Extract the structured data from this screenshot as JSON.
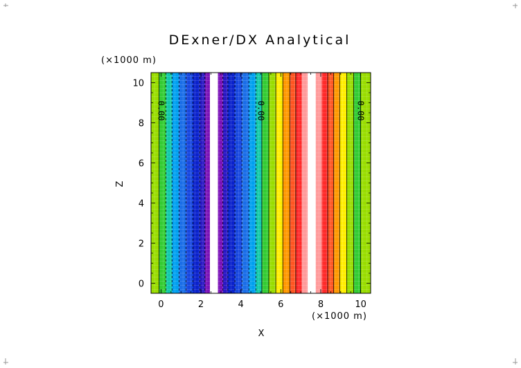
{
  "chart_data": {
    "type": "heatmap",
    "title": "DExner/DX Analytical",
    "xlabel": "X",
    "ylabel": "Z",
    "x_unit": "(×1000 m)",
    "y_unit": "(×1000 m)",
    "xlim": [
      -0.5,
      10.5
    ],
    "ylim": [
      -0.5,
      10.5
    ],
    "xticks": [
      0,
      2,
      4,
      6,
      8,
      10
    ],
    "yticks": [
      0,
      2,
      4,
      6,
      8,
      10
    ],
    "bands": [
      {
        "x0": -0.5,
        "x1": -0.1,
        "color": "#99dd00"
      },
      {
        "x0": -0.1,
        "x1": 0.25,
        "color": "#33cc33"
      },
      {
        "x0": 0.25,
        "x1": 0.55,
        "color": "#11c9aa"
      },
      {
        "x0": 0.55,
        "x1": 0.9,
        "color": "#00a0f0"
      },
      {
        "x0": 0.9,
        "x1": 1.25,
        "color": "#1a6ee8"
      },
      {
        "x0": 1.25,
        "x1": 1.6,
        "color": "#1747e0"
      },
      {
        "x0": 1.6,
        "x1": 1.95,
        "color": "#0a22cc"
      },
      {
        "x0": 1.95,
        "x1": 2.2,
        "color": "#2a18c4"
      },
      {
        "x0": 2.2,
        "x1": 2.45,
        "color": "#7a11b8"
      },
      {
        "x0": 2.45,
        "x1": 2.85,
        "color": "#ffffff"
      },
      {
        "x0": 2.85,
        "x1": 3.1,
        "color": "#7a11b8"
      },
      {
        "x0": 3.1,
        "x1": 3.35,
        "color": "#2a18c4"
      },
      {
        "x0": 3.35,
        "x1": 3.7,
        "color": "#0a22cc"
      },
      {
        "x0": 3.7,
        "x1": 4.05,
        "color": "#1747e0"
      },
      {
        "x0": 4.05,
        "x1": 4.4,
        "color": "#1a6ee8"
      },
      {
        "x0": 4.4,
        "x1": 4.75,
        "color": "#00a0f0"
      },
      {
        "x0": 4.75,
        "x1": 5.05,
        "color": "#11c9aa"
      },
      {
        "x0": 5.05,
        "x1": 5.4,
        "color": "#33cc33"
      },
      {
        "x0": 5.4,
        "x1": 5.75,
        "color": "#99dd00"
      },
      {
        "x0": 5.75,
        "x1": 6.1,
        "color": "#ffee00"
      },
      {
        "x0": 6.1,
        "x1": 6.45,
        "color": "#ff9900"
      },
      {
        "x0": 6.45,
        "x1": 6.75,
        "color": "#ff5522"
      },
      {
        "x0": 6.75,
        "x1": 7.05,
        "color": "#ff2a2a"
      },
      {
        "x0": 7.05,
        "x1": 7.35,
        "color": "#ff9a9a"
      },
      {
        "x0": 7.35,
        "x1": 7.75,
        "color": "#ffffff"
      },
      {
        "x0": 7.75,
        "x1": 8.05,
        "color": "#ff9a9a"
      },
      {
        "x0": 8.05,
        "x1": 8.35,
        "color": "#ff2a2a"
      },
      {
        "x0": 8.35,
        "x1": 8.65,
        "color": "#ff5522"
      },
      {
        "x0": 8.65,
        "x1": 8.95,
        "color": "#ff9900"
      },
      {
        "x0": 8.95,
        "x1": 9.3,
        "color": "#ffee00"
      },
      {
        "x0": 9.3,
        "x1": 9.65,
        "color": "#99dd00"
      },
      {
        "x0": 9.65,
        "x1": 10.0,
        "color": "#33cc33"
      },
      {
        "x0": 10.0,
        "x1": 10.5,
        "color": "#99dd00"
      }
    ],
    "contour_lines": [
      {
        "x": -0.1,
        "style": "solid"
      },
      {
        "x": 0.25,
        "style": "dashed"
      },
      {
        "x": 0.55,
        "style": "dashed"
      },
      {
        "x": 0.9,
        "style": "dashed"
      },
      {
        "x": 1.25,
        "style": "dashed"
      },
      {
        "x": 1.6,
        "style": "dashed"
      },
      {
        "x": 1.95,
        "style": "dashed"
      },
      {
        "x": 2.2,
        "style": "dashed"
      },
      {
        "x": 3.1,
        "style": "dashed"
      },
      {
        "x": 3.35,
        "style": "dashed"
      },
      {
        "x": 3.7,
        "style": "dashed"
      },
      {
        "x": 4.05,
        "style": "dashed"
      },
      {
        "x": 4.4,
        "style": "dashed"
      },
      {
        "x": 4.75,
        "style": "dashed"
      },
      {
        "x": 5.05,
        "style": "solid"
      },
      {
        "x": 5.4,
        "style": "solid"
      },
      {
        "x": 5.75,
        "style": "solid"
      },
      {
        "x": 6.1,
        "style": "solid"
      },
      {
        "x": 6.45,
        "style": "solid"
      },
      {
        "x": 6.75,
        "style": "solid"
      },
      {
        "x": 8.35,
        "style": "solid"
      },
      {
        "x": 8.65,
        "style": "solid"
      },
      {
        "x": 8.95,
        "style": "solid"
      },
      {
        "x": 9.3,
        "style": "solid"
      },
      {
        "x": 9.65,
        "style": "solid"
      },
      {
        "x": 10.0,
        "style": "solid"
      }
    ],
    "contour_labels": [
      {
        "text": "0.00",
        "x": 0.0,
        "z": 8.6
      },
      {
        "text": "0.00",
        "x": 5.0,
        "z": 8.6
      },
      {
        "text": "0.00",
        "x": 10.0,
        "z": 8.6
      }
    ],
    "grid": true
  }
}
